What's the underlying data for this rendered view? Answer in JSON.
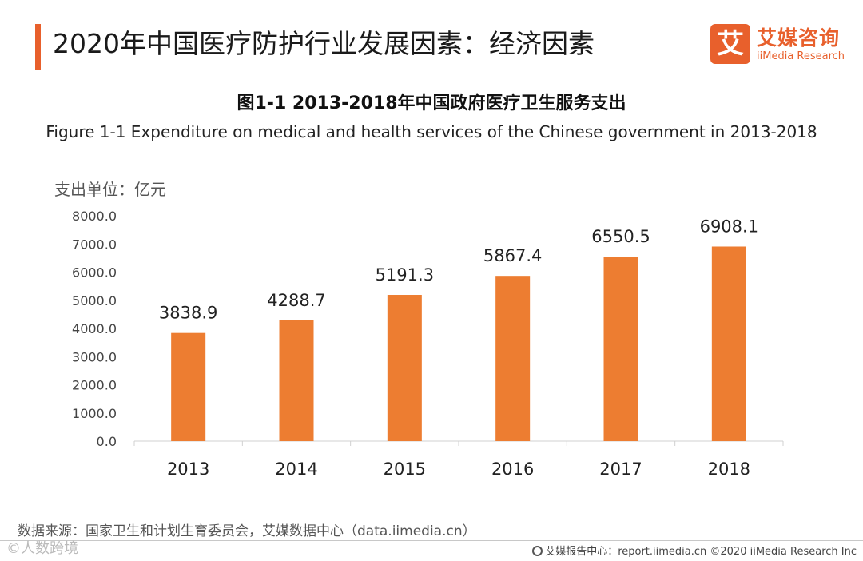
{
  "header": {
    "title": "2020年中国医疗防护行业发展因素：经济因素"
  },
  "logo": {
    "mark": "艾",
    "cn": "艾媒咨询",
    "en": "iiMedia Research"
  },
  "colors": {
    "accent": "#e8602c",
    "bar": "#ed7d31",
    "axis": "#d0d0d0"
  },
  "chart_data": {
    "type": "bar",
    "title": "图1-1 2013-2018年中国政府医疗卫生服务支出",
    "subtitle": "Figure 1-1 Expenditure on medical and health services of the Chinese government in 2013-2018",
    "ylabel": "支出单位：亿元",
    "xlabel": "",
    "categories": [
      "2013",
      "2014",
      "2015",
      "2016",
      "2017",
      "2018"
    ],
    "values": [
      3838.9,
      4288.7,
      5191.3,
      5867.4,
      6550.5,
      6908.1
    ],
    "value_labels": [
      "3838.9",
      "4288.7",
      "5191.3",
      "5867.4",
      "6550.5",
      "6908.1"
    ],
    "ylim": [
      0,
      8000
    ],
    "yticks": [
      0,
      1000,
      2000,
      3000,
      4000,
      5000,
      6000,
      7000,
      8000
    ],
    "ytick_labels": [
      "0.0",
      "1000.0",
      "2000.0",
      "3000.0",
      "4000.0",
      "5000.0",
      "6000.0",
      "7000.0",
      "8000.0"
    ],
    "grid": false,
    "legend": "none"
  },
  "source": "数据来源：国家卫生和计划生育委员会，艾媒数据中心（data.iimedia.cn）",
  "footer": "艾媒报告中心：report.iimedia.cn ©2020 iiMedia Research Inc",
  "watermark": "©人数跨境"
}
